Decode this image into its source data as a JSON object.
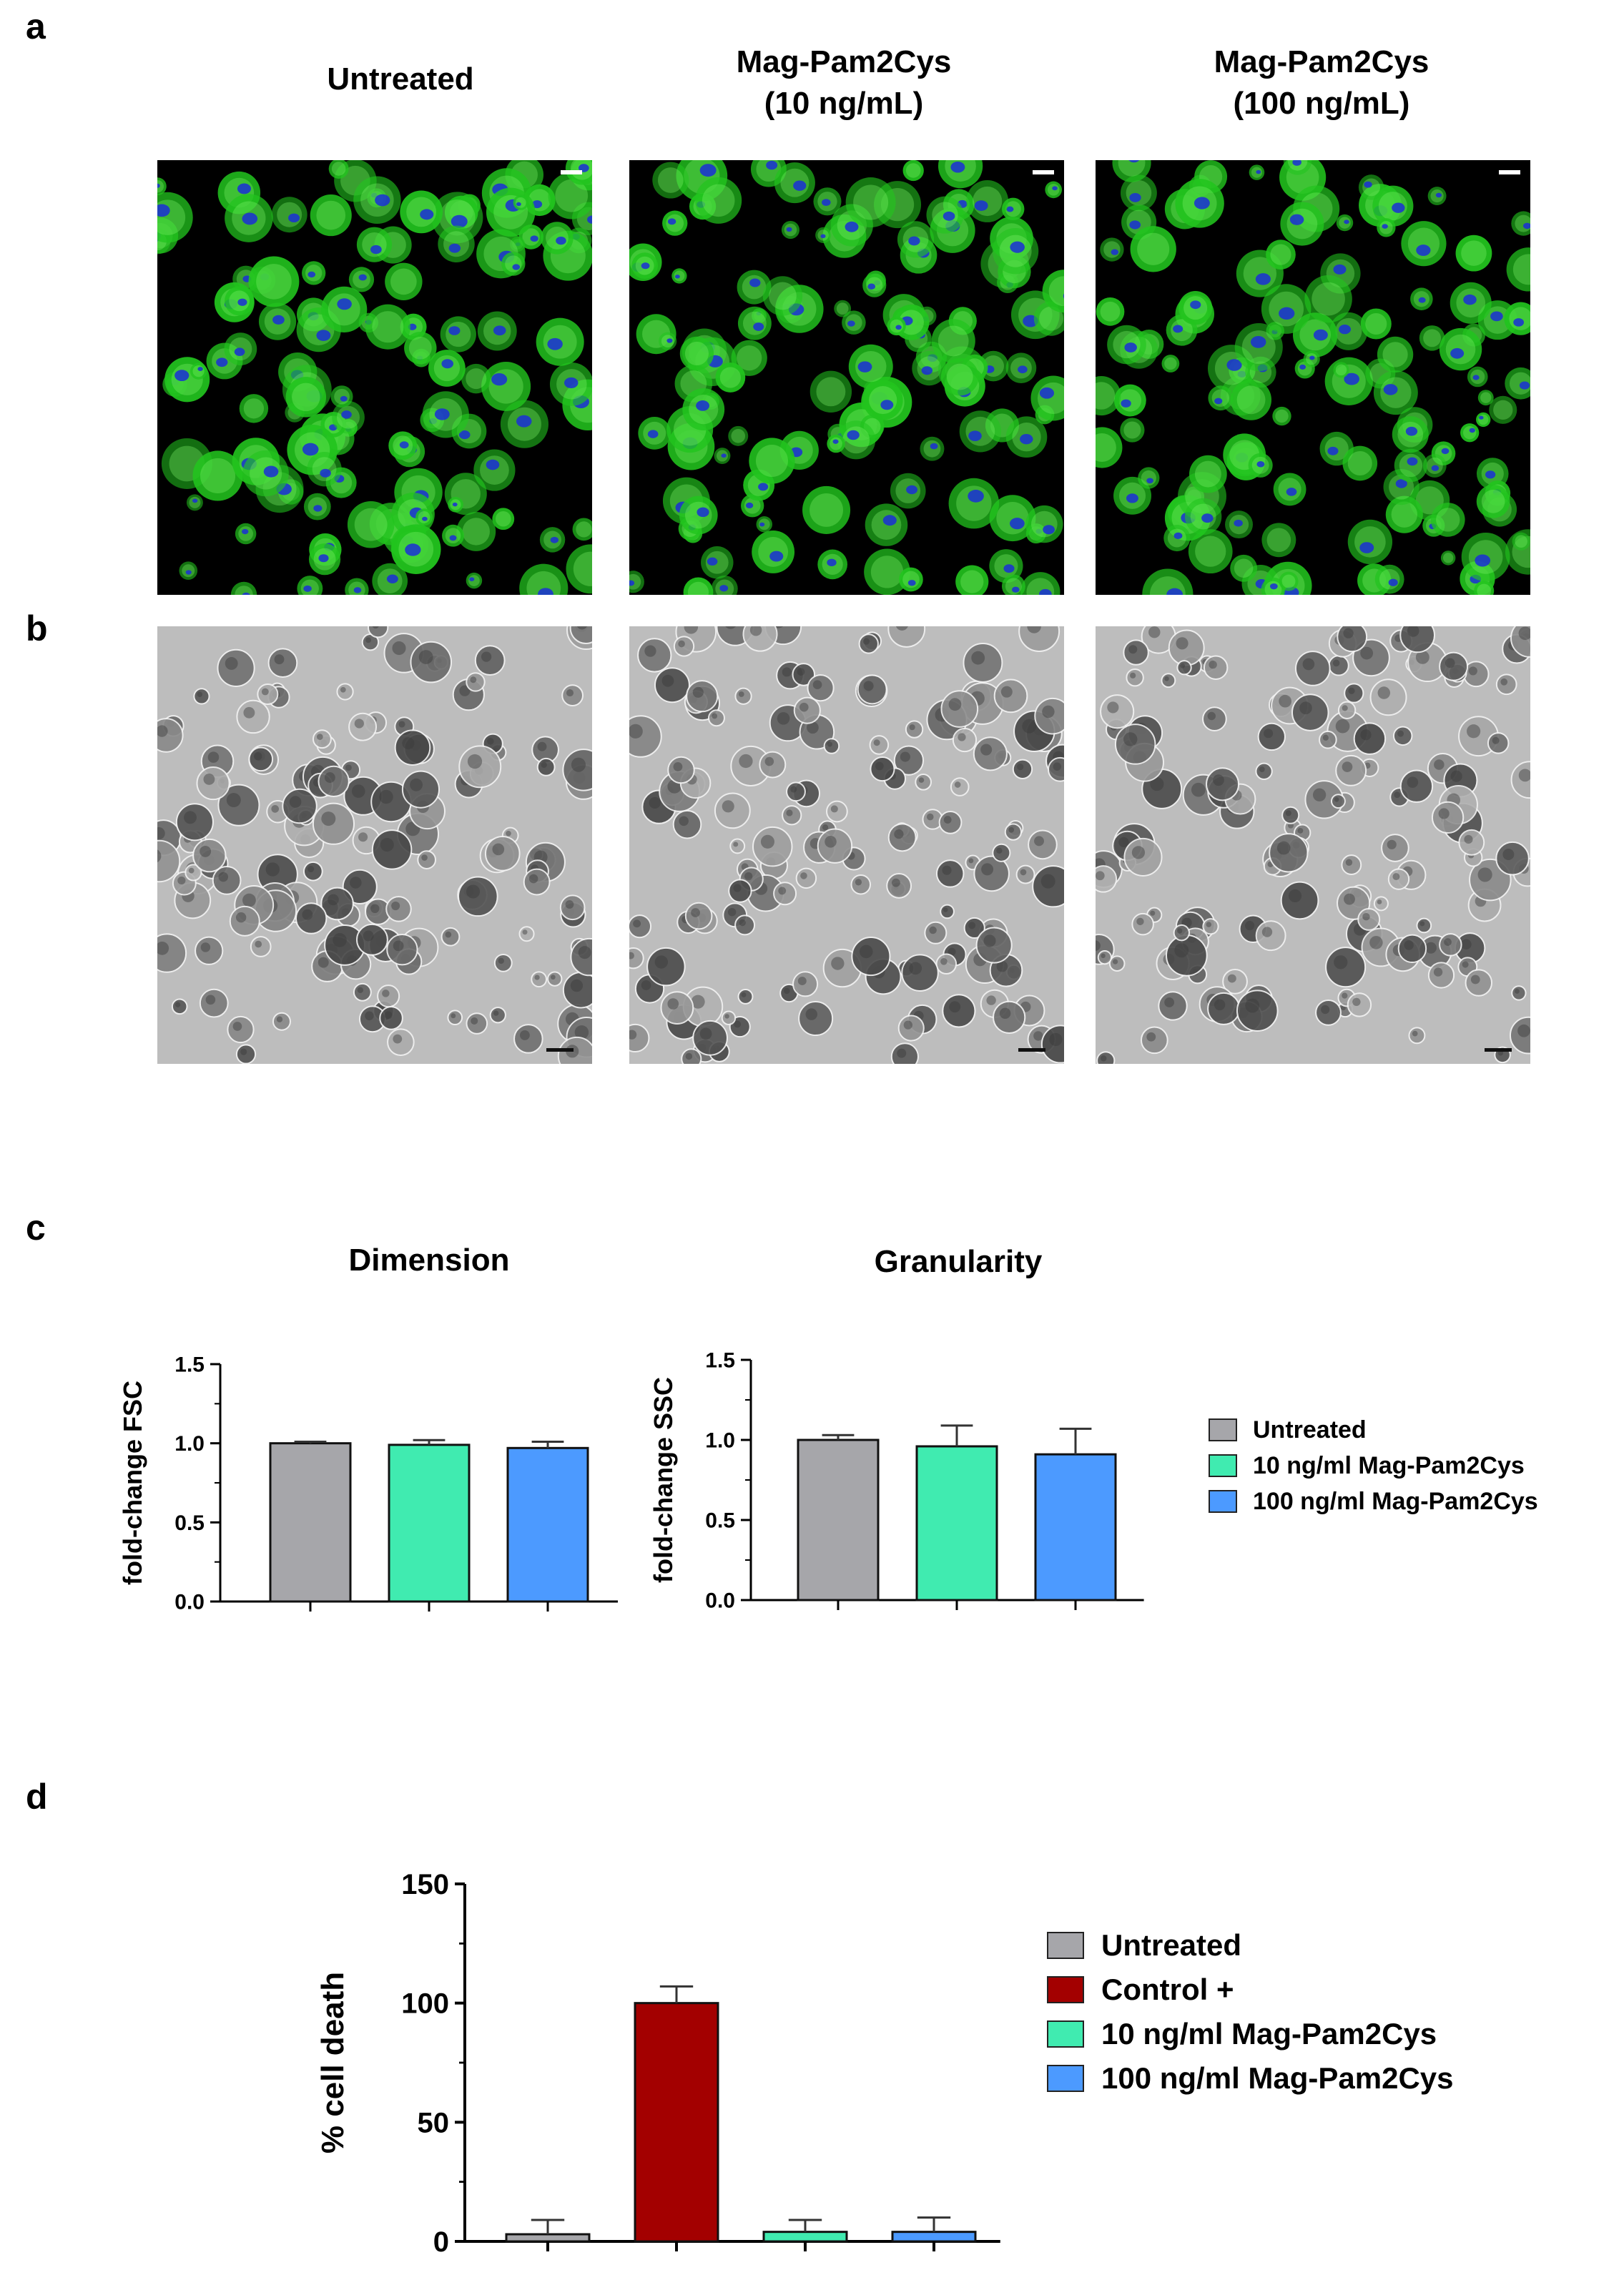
{
  "figure": {
    "panel_labels": {
      "a": "a",
      "b": "b",
      "c": "c",
      "d": "d"
    },
    "columns": [
      {
        "title_line1": "Untreated",
        "title_line2": ""
      },
      {
        "title_line1": "Mag-Pam2Cys",
        "title_line2": "(10 ng/mL)"
      },
      {
        "title_line1": "Mag-Pam2Cys",
        "title_line2": "(100 ng/mL)"
      }
    ],
    "legend_c": [
      "Untreated",
      "10 ng/ml Mag-Pam2Cys",
      "100 ng/ml Mag-Pam2Cys"
    ],
    "legend_d": [
      "Untreated",
      "Control +",
      "10 ng/ml Mag-Pam2Cys",
      "100 ng/ml Mag-Pam2Cys"
    ]
  },
  "colors": {
    "untreated": "#a6a6aa",
    "control": "#a30000",
    "low": "#40ebb0",
    "high": "#4c9aff",
    "fluor_green": "#22c41e",
    "fluor_blue": "#1a2fd6"
  },
  "chart_data": [
    {
      "type": "bar",
      "title": "Dimension",
      "ylabel": "fold-change FSC",
      "categories": [
        "Untreated",
        "10 ng/ml Mag-Pam2Cys",
        "100 ng/ml Mag-Pam2Cys"
      ],
      "values": [
        1.0,
        0.99,
        0.97
      ],
      "errors": [
        0.01,
        0.03,
        0.04
      ],
      "ylim": [
        0,
        1.5
      ],
      "yticks": [
        "0.0",
        "0.5",
        "1.0",
        "1.5"
      ],
      "legend": "right"
    },
    {
      "type": "bar",
      "title": "Granularity",
      "ylabel": "fold-change SSC",
      "categories": [
        "Untreated",
        "10 ng/ml Mag-Pam2Cys",
        "100 ng/ml Mag-Pam2Cys"
      ],
      "values": [
        1.0,
        0.96,
        0.91
      ],
      "errors": [
        0.03,
        0.13,
        0.16
      ],
      "ylim": [
        0,
        1.5
      ],
      "yticks": [
        "0.0",
        "0.5",
        "1.0",
        "1.5"
      ],
      "legend": "right"
    },
    {
      "type": "bar",
      "title": "",
      "ylabel": "% cell death",
      "categories": [
        "Untreated",
        "Control +",
        "10 ng/ml Mag-Pam2Cys",
        "100 ng/ml Mag-Pam2Cys"
      ],
      "values": [
        3,
        100,
        4,
        4
      ],
      "errors": [
        6,
        7,
        5,
        6
      ],
      "ylim": [
        0,
        150
      ],
      "yticks": [
        "0",
        "50",
        "100",
        "150"
      ],
      "legend": "right"
    }
  ]
}
